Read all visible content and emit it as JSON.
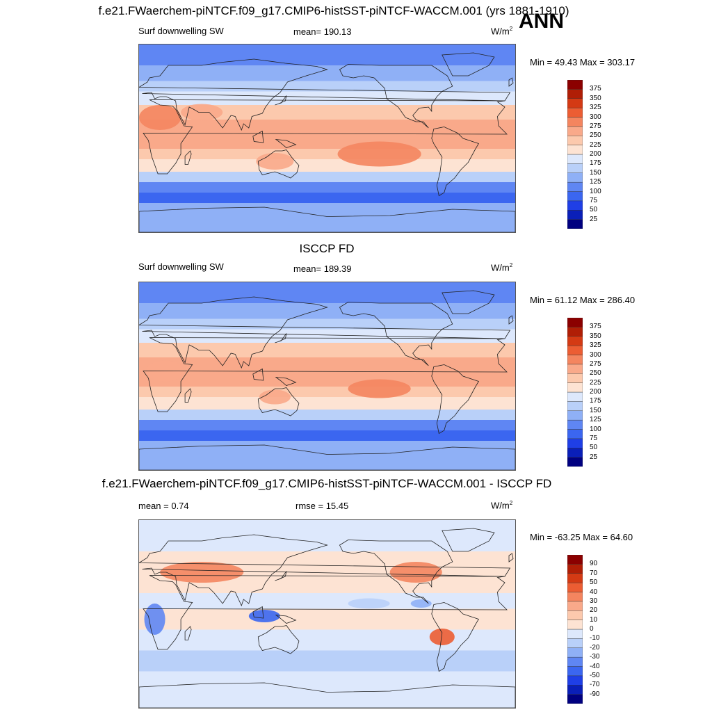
{
  "header": {
    "title": "f.e21.FWaerchem-piNTCF.f09_g17.CMIP6-histSST-piNTCF-WACCM.001 (yrs 1881-1910)",
    "season": "ANN"
  },
  "panels": [
    {
      "left_label": "Surf downwelling SW",
      "center_label": "mean= 190.13",
      "unit_base": "W/m",
      "unit_exp": "2",
      "minmax": "Min =  49.43 Max = 303.17"
    },
    {
      "title": "ISCCP FD",
      "left_label": "Surf downwelling SW",
      "center_label": "mean= 189.39",
      "unit_base": "W/m",
      "unit_exp": "2",
      "minmax": "Min =  61.12 Max = 286.40"
    },
    {
      "title": "f.e21.FWaerchem-piNTCF.f09_g17.CMIP6-histSST-piNTCF-WACCM.001 - ISCCP FD",
      "left_label": "mean =   0.74",
      "center_label": "rmse =  15.45",
      "unit_base": "W/m",
      "unit_exp": "2",
      "minmax": "Min = -63.25 Max =  64.60"
    }
  ],
  "chart_data": [
    {
      "type": "heatmap",
      "title": "Surf downwelling SW",
      "mean": 190.13,
      "min": 49.43,
      "max": 303.17,
      "units": "W/m2",
      "colorbar_levels": [
        25,
        50,
        75,
        100,
        125,
        150,
        175,
        200,
        225,
        250,
        275,
        300,
        325,
        350,
        375
      ],
      "colorbar_colors": [
        "#000080",
        "#0a1fb8",
        "#1f3fe6",
        "#3b66f0",
        "#5f86f3",
        "#8fb0f6",
        "#b9d0f9",
        "#dde8fc",
        "#fde3d3",
        "#fcc9ad",
        "#f9a98a",
        "#f4855f",
        "#ec5d33",
        "#d43a14",
        "#b01e06",
        "#8b0000"
      ]
    },
    {
      "type": "heatmap",
      "title": "ISCCP FD",
      "mean": 189.39,
      "min": 61.12,
      "max": 286.4,
      "units": "W/m2",
      "colorbar_levels": [
        25,
        50,
        75,
        100,
        125,
        150,
        175,
        200,
        225,
        250,
        275,
        300,
        325,
        350,
        375
      ],
      "colorbar_colors": [
        "#000080",
        "#0a1fb8",
        "#1f3fe6",
        "#3b66f0",
        "#5f86f3",
        "#8fb0f6",
        "#b9d0f9",
        "#dde8fc",
        "#fde3d3",
        "#fcc9ad",
        "#f9a98a",
        "#f4855f",
        "#ec5d33",
        "#d43a14",
        "#b01e06",
        "#8b0000"
      ]
    },
    {
      "type": "heatmap",
      "title": "f.e21.FWaerchem-piNTCF.f09_g17.CMIP6-histSST-piNTCF-WACCM.001 - ISCCP FD",
      "mean": 0.74,
      "rmse": 15.45,
      "min": -63.25,
      "max": 64.6,
      "units": "W/m2",
      "colorbar_levels": [
        -90,
        -70,
        -50,
        -40,
        -30,
        -20,
        -10,
        0,
        10,
        20,
        30,
        40,
        50,
        70,
        90
      ],
      "colorbar_colors": [
        "#000080",
        "#0a1fb8",
        "#1f3fe6",
        "#3b66f0",
        "#5f86f3",
        "#8fb0f6",
        "#b9d0f9",
        "#dde8fc",
        "#fde3d3",
        "#fcc9ad",
        "#f9a98a",
        "#f4855f",
        "#ec5d33",
        "#d43a14",
        "#b01e06",
        "#8b0000"
      ]
    }
  ]
}
